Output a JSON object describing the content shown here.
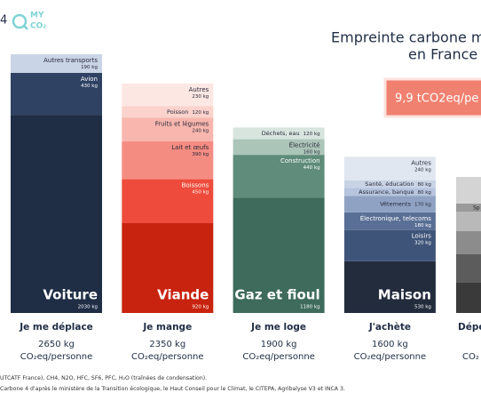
{
  "logo": {
    "number": "4",
    "brand_top": "MY",
    "brand_bottom": "CO₂"
  },
  "footnotes": [
    "UTCATF France), CH4, N2O, HFC, SF6, PFC, H₂O (traînées de condensation).",
    "Carbone 4 d'après le ministère de la Transition écologique, le Haut Conseil pour le Climat, le CITEPA, Agribalyse V3 et INCA 3."
  ],
  "chart_data": {
    "type": "stacked-columns",
    "title": "Empreinte carbone m",
    "subtitle": "en France",
    "badge": "9,9 tCO2eq/pe",
    "partial_column": {
      "name": "Dépe",
      "unit": "CO₂",
      "segment": "Sp"
    },
    "columns": [
      {
        "name": "Je me déplace",
        "total": 2650,
        "total_label": "2650 kg",
        "unit": "CO₂eq/personne",
        "segments": [
          {
            "name": "Voiture",
            "value": 2030,
            "value_label": "2030 kg",
            "color": "#1f2d45",
            "layout": "big"
          },
          {
            "name": "Avion",
            "value": 430,
            "value_label": "430 kg",
            "color": "#2f4264",
            "layout": "stack"
          },
          {
            "name": "Autres transports",
            "value": 190,
            "value_label": "190 kg",
            "color": "#c9d4e6",
            "layout": "stack"
          }
        ]
      },
      {
        "name": "Je mange",
        "total": 2350,
        "total_label": "2350 kg",
        "unit": "CO₂eq/personne",
        "segments": [
          {
            "name": "Viande",
            "value": 920,
            "value_label": "920 kg",
            "color": "#c8230f",
            "layout": "big"
          },
          {
            "name": "Boissons",
            "value": 450,
            "value_label": "450 kg",
            "color": "#ee4b3c",
            "layout": "stack"
          },
          {
            "name": "Lait et œufs",
            "value": 390,
            "value_label": "390 kg",
            "color": "#f58c82",
            "layout": "stack"
          },
          {
            "name": "Fruits et légumes",
            "value": 240,
            "value_label": "240 kg",
            "color": "#f8b6ae",
            "layout": "stack"
          },
          {
            "name": "Poisson",
            "value": 120,
            "value_label": "120 kg",
            "color": "#fbd2cc",
            "layout": "inline"
          },
          {
            "name": "Autres",
            "value": 230,
            "value_label": "230 kg",
            "color": "#fde7e3",
            "layout": "stack"
          }
        ]
      },
      {
        "name": "Je me loge",
        "total": 1900,
        "total_label": "1900 kg",
        "unit": "CO₂eq/personne",
        "segments": [
          {
            "name": "Gaz et fioul",
            "value": 1180,
            "value_label": "1180 kg",
            "color": "#3e6b5b",
            "layout": "big"
          },
          {
            "name": "Construction",
            "value": 440,
            "value_label": "440 kg",
            "color": "#5f8c7b",
            "layout": "stack"
          },
          {
            "name": "Électricité",
            "value": 160,
            "value_label": "160 kg",
            "color": "#abc5b9",
            "layout": "stack"
          },
          {
            "name": "Déchets, eau",
            "value": 120,
            "value_label": "120 kg",
            "color": "#d8e5df",
            "layout": "inline"
          }
        ]
      },
      {
        "name": "J'achète",
        "total": 1600,
        "total_label": "1600 kg",
        "unit": "CO₂eq/personne",
        "segments": [
          {
            "name": "Maison",
            "value": 530,
            "value_label": "530 kg",
            "color": "#232c3d",
            "layout": "big"
          },
          {
            "name": "Loisirs",
            "value": 320,
            "value_label": "320 kg",
            "color": "#3f5479",
            "layout": "stack"
          },
          {
            "name": "Électronique, telecoms",
            "value": 180,
            "value_label": "180 kg",
            "color": "#5a6f96",
            "layout": "stack"
          },
          {
            "name": "Vêtements",
            "value": 170,
            "value_label": "170 kg",
            "color": "#8fa2c4",
            "layout": "inline"
          },
          {
            "name": "Assurance, banque",
            "value": 80,
            "value_label": "80 kg",
            "color": "#b6c4dc",
            "layout": "inline"
          },
          {
            "name": "Santé, éducation",
            "value": 80,
            "value_label": "80 kg",
            "color": "#c9d3e6",
            "layout": "inline"
          },
          {
            "name": "Autres",
            "value": 240,
            "value_label": "240 kg",
            "color": "#e0e7f1",
            "layout": "stack"
          }
        ]
      }
    ]
  }
}
